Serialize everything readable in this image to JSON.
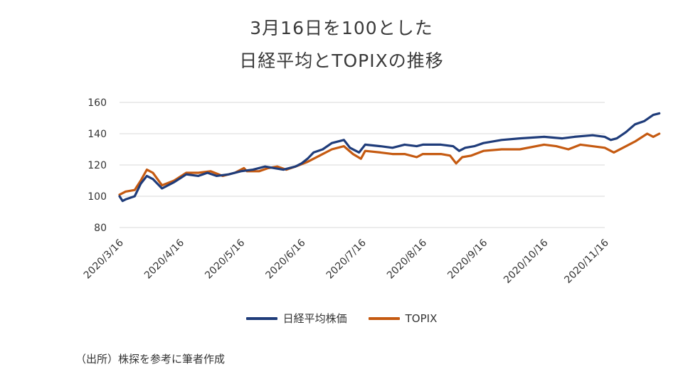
{
  "chart_data": {
    "type": "line",
    "title_line1": "3月16日を100とした",
    "title_line2": "日経平均とTOPIXの推移",
    "ylim": [
      80,
      160
    ],
    "yticks": [
      "80",
      "100",
      "120",
      "140",
      "160"
    ],
    "xticks": [
      "2020/3/16",
      "2020/4/16",
      "2020/5/16",
      "2020/6/16",
      "2020/7/16",
      "2020/8/16",
      "2020/9/16",
      "2020/10/16",
      "2020/11/16"
    ],
    "grid": true,
    "legend_position": "bottom",
    "series": [
      {
        "name": "日経平均株価",
        "color": "#1f3c7a",
        "values": [
          [
            0,
            100
          ],
          [
            0.05,
            97
          ],
          [
            0.1,
            98
          ],
          [
            0.25,
            100
          ],
          [
            0.35,
            108
          ],
          [
            0.45,
            113
          ],
          [
            0.55,
            111
          ],
          [
            0.7,
            105
          ],
          [
            0.9,
            109
          ],
          [
            1.1,
            114
          ],
          [
            1.3,
            113
          ],
          [
            1.45,
            115
          ],
          [
            1.6,
            113
          ],
          [
            1.8,
            114
          ],
          [
            2.0,
            116
          ],
          [
            2.2,
            117
          ],
          [
            2.4,
            119
          ],
          [
            2.55,
            118
          ],
          [
            2.7,
            117
          ],
          [
            2.9,
            119
          ],
          [
            3.0,
            121
          ],
          [
            3.1,
            124
          ],
          [
            3.2,
            128
          ],
          [
            3.35,
            130
          ],
          [
            3.5,
            134
          ],
          [
            3.7,
            136
          ],
          [
            3.8,
            131
          ],
          [
            3.95,
            128
          ],
          [
            4.05,
            133
          ],
          [
            4.3,
            132
          ],
          [
            4.5,
            131
          ],
          [
            4.7,
            133
          ],
          [
            4.9,
            132
          ],
          [
            5.0,
            133
          ],
          [
            5.3,
            133
          ],
          [
            5.5,
            132
          ],
          [
            5.6,
            129
          ],
          [
            5.7,
            131
          ],
          [
            5.85,
            132
          ],
          [
            6.0,
            134
          ],
          [
            6.3,
            136
          ],
          [
            6.6,
            137
          ],
          [
            7.0,
            138
          ],
          [
            7.3,
            137
          ],
          [
            7.5,
            138
          ],
          [
            7.8,
            139
          ],
          [
            8.0,
            138
          ],
          [
            8.1,
            136
          ],
          [
            8.2,
            137
          ],
          [
            8.35,
            141
          ],
          [
            8.5,
            146
          ],
          [
            8.65,
            148
          ],
          [
            8.8,
            152
          ],
          [
            8.9,
            153
          ]
        ]
      },
      {
        "name": "TOPIX",
        "color": "#c55a11",
        "values": [
          [
            0,
            101
          ],
          [
            0.1,
            103
          ],
          [
            0.25,
            104
          ],
          [
            0.35,
            110
          ],
          [
            0.45,
            117
          ],
          [
            0.55,
            115
          ],
          [
            0.7,
            107
          ],
          [
            0.9,
            110
          ],
          [
            1.1,
            115
          ],
          [
            1.3,
            115
          ],
          [
            1.5,
            116
          ],
          [
            1.7,
            113
          ],
          [
            1.9,
            115
          ],
          [
            2.05,
            118
          ],
          [
            2.1,
            116
          ],
          [
            2.3,
            116
          ],
          [
            2.45,
            118
          ],
          [
            2.6,
            119
          ],
          [
            2.75,
            117
          ],
          [
            2.9,
            119
          ],
          [
            3.1,
            122
          ],
          [
            3.3,
            126
          ],
          [
            3.5,
            130
          ],
          [
            3.7,
            132
          ],
          [
            3.85,
            127
          ],
          [
            3.98,
            124
          ],
          [
            4.05,
            129
          ],
          [
            4.3,
            128
          ],
          [
            4.5,
            127
          ],
          [
            4.7,
            127
          ],
          [
            4.9,
            125
          ],
          [
            5.0,
            127
          ],
          [
            5.3,
            127
          ],
          [
            5.45,
            126
          ],
          [
            5.55,
            121
          ],
          [
            5.65,
            125
          ],
          [
            5.8,
            126
          ],
          [
            6.0,
            129
          ],
          [
            6.3,
            130
          ],
          [
            6.6,
            130
          ],
          [
            7.0,
            133
          ],
          [
            7.2,
            132
          ],
          [
            7.4,
            130
          ],
          [
            7.6,
            133
          ],
          [
            8.0,
            131
          ],
          [
            8.15,
            128
          ],
          [
            8.3,
            131
          ],
          [
            8.5,
            135
          ],
          [
            8.7,
            140
          ],
          [
            8.8,
            138
          ],
          [
            8.9,
            140
          ]
        ]
      }
    ]
  },
  "source_note": "（出所）株探を参考に筆者作成"
}
